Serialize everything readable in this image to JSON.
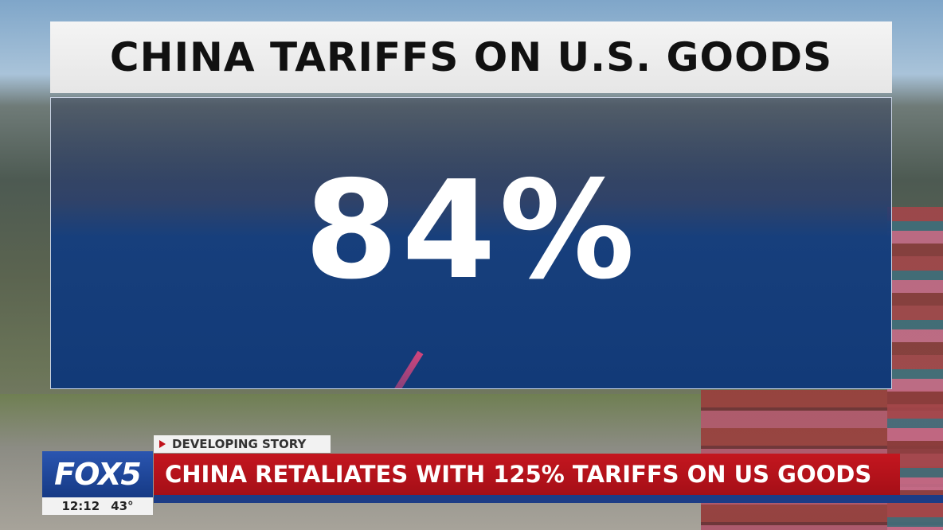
{
  "graphic": {
    "title": "CHINA TARIFFS ON U.S. GOODS",
    "headline_value": "84%"
  },
  "lower_third": {
    "tag": "DEVELOPING STORY",
    "headline": "CHINA RETALIATES WITH 125% TARIFFS ON US GOODS"
  },
  "station": {
    "logo": "FOX5",
    "time": "12:12",
    "temperature": "43°"
  }
}
